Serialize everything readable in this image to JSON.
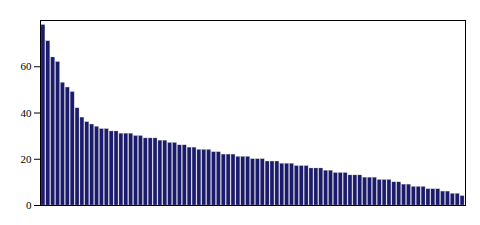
{
  "chart_data": {
    "type": "bar",
    "categories": [
      null,
      null,
      null,
      null,
      null,
      null,
      null,
      null,
      null,
      null,
      null,
      null,
      null,
      null,
      null,
      null,
      null,
      null,
      null,
      null,
      null,
      null,
      null,
      null,
      null,
      null,
      null,
      null,
      null,
      null,
      null,
      null,
      null,
      null,
      null,
      null,
      null,
      null,
      null,
      null,
      null,
      null,
      null,
      null,
      null,
      null,
      null,
      null,
      null,
      null,
      null,
      null,
      null,
      null,
      null,
      null,
      null,
      null,
      null,
      null,
      null,
      null,
      null,
      null,
      null,
      null,
      null,
      null,
      null,
      null,
      null,
      null,
      null,
      null,
      null,
      null,
      null,
      null,
      null,
      null,
      null,
      null,
      null,
      null,
      null,
      null,
      null
    ],
    "values": [
      78,
      71,
      64,
      62,
      53,
      51,
      49,
      42,
      38,
      36,
      35,
      34,
      33,
      33,
      32,
      32,
      31,
      31,
      31,
      30,
      30,
      29,
      29,
      29,
      28,
      28,
      27,
      27,
      26,
      26,
      25,
      25,
      24,
      24,
      24,
      23,
      23,
      22,
      22,
      22,
      21,
      21,
      21,
      20,
      20,
      20,
      19,
      19,
      19,
      18,
      18,
      18,
      17,
      17,
      17,
      16,
      16,
      16,
      15,
      15,
      14,
      14,
      14,
      13,
      13,
      13,
      12,
      12,
      12,
      11,
      11,
      11,
      10,
      10,
      9,
      9,
      8,
      8,
      8,
      7,
      7,
      7,
      6,
      6,
      5,
      5,
      4
    ],
    "color": "#1a1a6e",
    "ylim": [
      0,
      80
    ],
    "yticks": [
      0,
      20,
      40,
      60
    ],
    "grid": false,
    "tick_labels": "y"
  }
}
